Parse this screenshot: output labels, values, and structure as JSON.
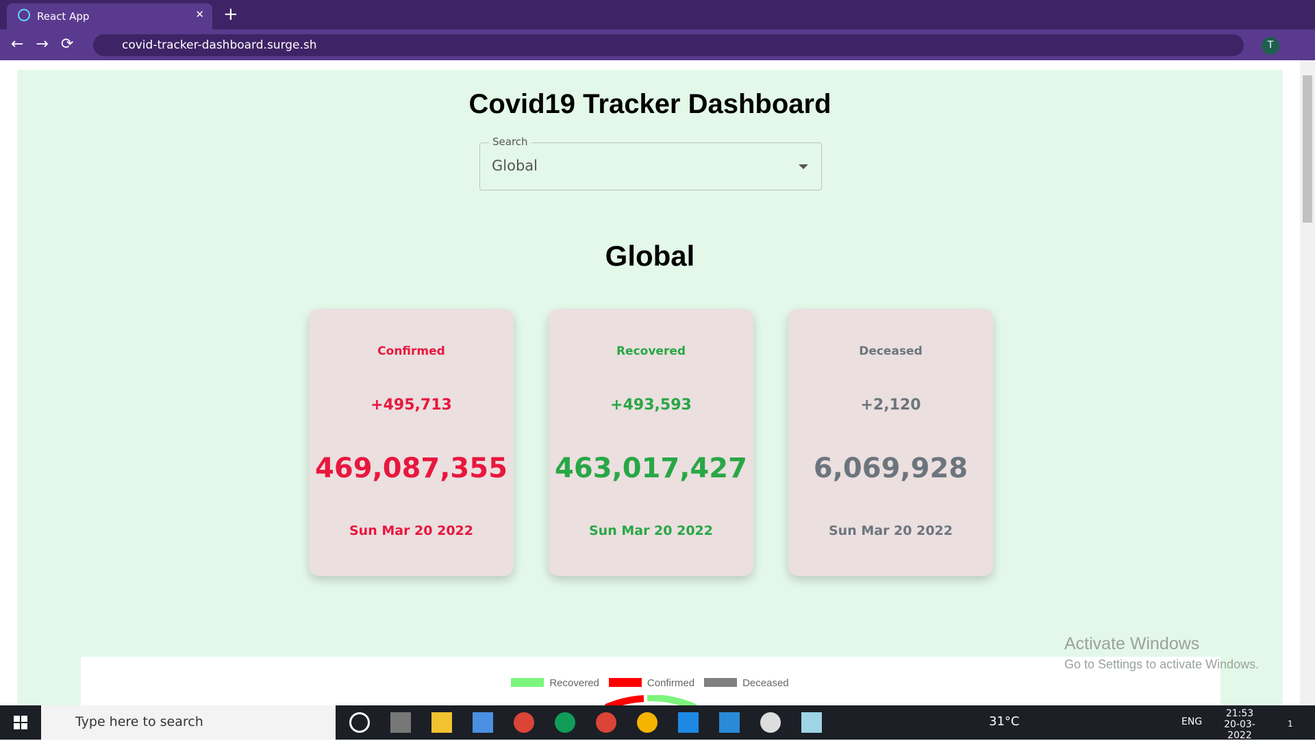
{
  "browser": {
    "tab_title": "React App",
    "url": "covid-tracker-dashboard.surge.sh",
    "avatar": "T"
  },
  "page": {
    "title": "Covid19 Tracker Dashboard",
    "search": {
      "label": "Search",
      "value": "Global"
    },
    "heading": "Global",
    "cards": [
      {
        "label": "Confirmed",
        "delta": "+495,713",
        "total": "469,087,355",
        "date": "Sun Mar 20 2022",
        "color": "#e8173e"
      },
      {
        "label": "Recovered",
        "delta": "+493,593",
        "total": "463,017,427",
        "date": "Sun Mar 20 2022",
        "color": "#28a745"
      },
      {
        "label": "Deceased",
        "delta": "+2,120",
        "total": "6,069,928",
        "date": "Sun Mar 20 2022",
        "color": "#6c757d"
      }
    ],
    "legend": [
      {
        "name": "Recovered",
        "color": "#7cf57c"
      },
      {
        "name": "Confirmed",
        "color": "#ff0000"
      },
      {
        "name": "Deceased",
        "color": "#808080"
      }
    ]
  },
  "watermark": {
    "title": "Activate Windows",
    "subtitle": "Go to Settings to activate Windows."
  },
  "taskbar": {
    "search": "Type here to search",
    "weather": "31°C",
    "language": "ENG",
    "time": "21:53",
    "date": "20-03-2022",
    "notifications": "1"
  }
}
